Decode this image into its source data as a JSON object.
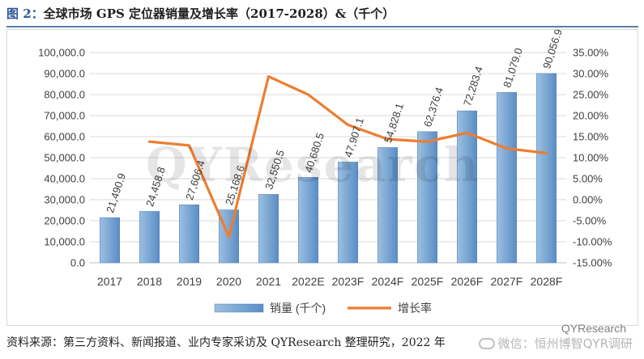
{
  "title": {
    "figure_no": "图 2：",
    "text": "全球市场 GPS 定位器销量及增长率（2017-2028）&（千个）"
  },
  "watermark": "QYResearch",
  "footer": {
    "source": "资料来源：第三方资料、新闻报道、业内专家采访及 QYResearch 整理研究，2022 年",
    "credit": "QYResearch",
    "wechat": "微信：恒州博智QYR调研"
  },
  "colors": {
    "bar": "#7ba7d3",
    "bar_edge": "#4f81bd",
    "line": "#ed7d31",
    "grid": "#d9d9d9",
    "text": "#404040"
  },
  "chart_data": {
    "type": "bar",
    "categories": [
      "2017",
      "2018",
      "2019",
      "2020",
      "2021",
      "2022E",
      "2023F",
      "2024F",
      "2025F",
      "2026F",
      "2027F",
      "2028F"
    ],
    "series": [
      {
        "name": "销量 (千个)",
        "type": "bar",
        "axis": "left",
        "values": [
          21490.9,
          24458.8,
          27606.4,
          25168.6,
          32550.5,
          40680.5,
          47907.1,
          54828.1,
          62376.4,
          72283.4,
          81079.0,
          90056.9
        ],
        "labels": [
          "21,490.9",
          "24,458.8",
          "27,606.4",
          "25,168.6",
          "32,550.5",
          "40,680.5",
          "47,907.1",
          "54,828.1",
          "62,376.4",
          "72,283.4",
          "81,079.0",
          "90,056.9"
        ]
      },
      {
        "name": "增长率",
        "type": "line",
        "axis": "right",
        "values": [
          null,
          13.8,
          12.9,
          -8.8,
          29.3,
          25.0,
          17.8,
          14.4,
          13.8,
          15.9,
          12.2,
          11.1
        ]
      }
    ],
    "y_left": {
      "min": 0,
      "max": 100000,
      "step": 10000,
      "ticks": [
        "0.0",
        "10,000.0",
        "20,000.0",
        "30,000.0",
        "40,000.0",
        "50,000.0",
        "60,000.0",
        "70,000.0",
        "80,000.0",
        "90,000.0",
        "100,000.0"
      ]
    },
    "y_right": {
      "min": -15,
      "max": 35,
      "step": 5,
      "ticks": [
        "-15.00%",
        "-10.00%",
        "-5.00%",
        "0.00%",
        "5.00%",
        "10.00%",
        "15.00%",
        "20.00%",
        "25.00%",
        "30.00%",
        "35.00%"
      ]
    },
    "grid": true,
    "legend_position": "bottom"
  }
}
